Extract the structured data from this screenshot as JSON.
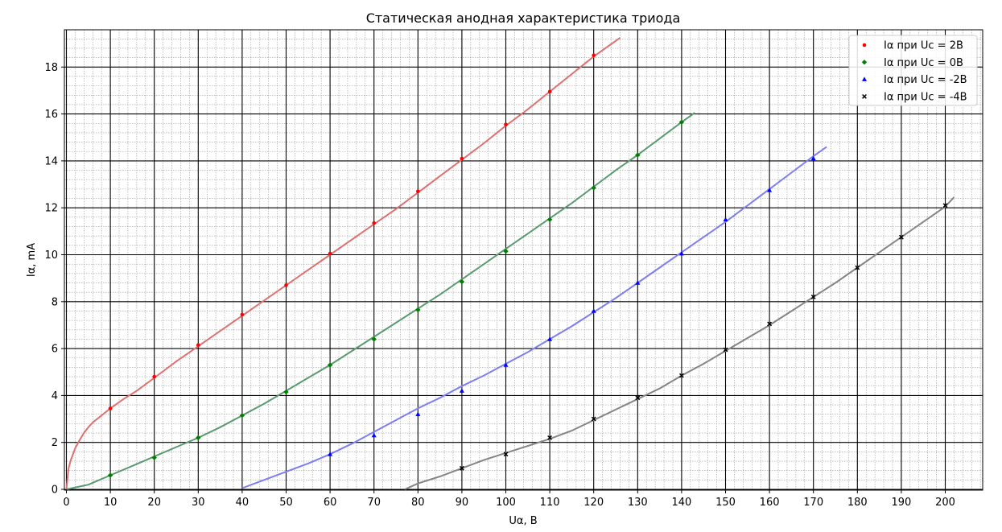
{
  "chart_data": {
    "type": "scatter",
    "title": "Статическая анодная характеристика триода",
    "xlabel": "Uα, В",
    "ylabel": "Iα, mA",
    "xlabel_color": "#0000cc",
    "ylabel_color": "#dd0000",
    "xlim": [
      0,
      208
    ],
    "ylim": [
      0,
      19.5
    ],
    "xticks": [
      0,
      10,
      20,
      30,
      40,
      50,
      60,
      70,
      80,
      90,
      100,
      110,
      120,
      130,
      140,
      150,
      160,
      170,
      180,
      190,
      200
    ],
    "yticks": [
      0,
      2,
      4,
      6,
      8,
      10,
      12,
      14,
      16,
      18
    ],
    "grid": {
      "major": true,
      "minor": true
    },
    "legend_position": "top-right",
    "series": [
      {
        "name": "Iα при Uc = 2В",
        "marker": "circle",
        "marker_color": "#ff0000",
        "line_color": "#e07070",
        "x": [
          10,
          20,
          30,
          40,
          50,
          60,
          70,
          80,
          90,
          100,
          110,
          120
        ],
        "y": [
          3.45,
          4.8,
          6.15,
          7.45,
          8.7,
          10.05,
          11.35,
          12.7,
          14.1,
          15.55,
          16.95,
          18.5
        ],
        "fit_x": [
          0,
          0.5,
          1,
          2,
          3,
          4,
          5,
          6,
          8,
          10,
          13,
          16,
          20,
          25,
          30,
          35,
          40,
          45,
          50,
          55,
          60,
          65,
          70,
          75,
          80,
          85,
          90,
          95,
          100,
          105,
          110,
          115,
          120,
          126
        ],
        "fit_y": [
          0,
          0.9,
          1.25,
          1.75,
          2.1,
          2.4,
          2.65,
          2.85,
          3.15,
          3.45,
          3.85,
          4.2,
          4.75,
          5.45,
          6.1,
          6.75,
          7.4,
          8.05,
          8.7,
          9.35,
          10.0,
          10.65,
          11.3,
          11.95,
          12.65,
          13.35,
          14.05,
          14.75,
          15.5,
          16.2,
          16.95,
          17.7,
          18.45,
          19.25
        ]
      },
      {
        "name": "Iα при Uc = 0В",
        "marker": "diamond",
        "marker_color": "#008000",
        "line_color": "#5a9a70",
        "x": [
          10,
          20,
          30,
          40,
          50,
          60,
          70,
          80,
          90,
          100,
          110,
          120,
          130,
          140
        ],
        "y": [
          0.6,
          1.35,
          2.2,
          3.15,
          4.15,
          5.3,
          6.4,
          7.65,
          8.85,
          10.15,
          11.5,
          12.85,
          14.25,
          15.65
        ],
        "fit_x": [
          0,
          5,
          10,
          15,
          20,
          25,
          30,
          35,
          40,
          45,
          50,
          55,
          60,
          65,
          70,
          75,
          80,
          85,
          90,
          95,
          100,
          105,
          110,
          115,
          120,
          125,
          130,
          135,
          140,
          143
        ],
        "fit_y": [
          0,
          0.2,
          0.6,
          1.0,
          1.4,
          1.8,
          2.2,
          2.65,
          3.15,
          3.65,
          4.2,
          4.75,
          5.3,
          5.9,
          6.5,
          7.1,
          7.7,
          8.3,
          8.95,
          9.6,
          10.25,
          10.9,
          11.55,
          12.2,
          12.9,
          13.6,
          14.25,
          14.95,
          15.65,
          16.05
        ]
      },
      {
        "name": "Iα при Uc = -2В",
        "marker": "triangle",
        "marker_color": "#0000ff",
        "line_color": "#7d7df5",
        "x": [
          60,
          70,
          80,
          90,
          100,
          110,
          120,
          130,
          140,
          150,
          160,
          170
        ],
        "y": [
          1.5,
          2.3,
          3.2,
          4.2,
          5.3,
          6.4,
          7.6,
          8.8,
          10.05,
          11.5,
          12.75,
          14.1
        ],
        "fit_x": [
          40,
          45,
          50,
          55,
          60,
          65,
          70,
          75,
          80,
          85,
          90,
          95,
          100,
          105,
          110,
          115,
          120,
          125,
          130,
          135,
          140,
          145,
          150,
          155,
          160,
          165,
          170,
          173
        ],
        "fit_y": [
          0.05,
          0.4,
          0.75,
          1.1,
          1.5,
          1.95,
          2.45,
          2.95,
          3.45,
          3.9,
          4.4,
          4.85,
          5.35,
          5.85,
          6.4,
          6.95,
          7.55,
          8.15,
          8.8,
          9.45,
          10.1,
          10.75,
          11.4,
          12.1,
          12.8,
          13.5,
          14.2,
          14.6
        ]
      },
      {
        "name": "Iα при Uc = -4В",
        "marker": "x",
        "marker_color": "#000000",
        "line_color": "#858585",
        "x": [
          90,
          100,
          110,
          120,
          130,
          140,
          150,
          160,
          170,
          180,
          190,
          200
        ],
        "y": [
          0.9,
          1.5,
          2.2,
          3.0,
          3.9,
          4.85,
          5.95,
          7.05,
          8.2,
          9.45,
          10.75,
          12.1
        ],
        "fit_x": [
          77,
          80,
          85,
          90,
          95,
          100,
          105,
          110,
          115,
          120,
          125,
          130,
          135,
          140,
          145,
          150,
          155,
          160,
          165,
          170,
          175,
          180,
          185,
          190,
          195,
          200,
          202
        ],
        "fit_y": [
          0.0,
          0.25,
          0.55,
          0.9,
          1.25,
          1.55,
          1.85,
          2.15,
          2.5,
          2.95,
          3.4,
          3.85,
          4.3,
          4.85,
          5.35,
          5.9,
          6.45,
          7.0,
          7.6,
          8.2,
          8.8,
          9.45,
          10.1,
          10.75,
          11.4,
          12.05,
          12.45
        ]
      }
    ]
  }
}
